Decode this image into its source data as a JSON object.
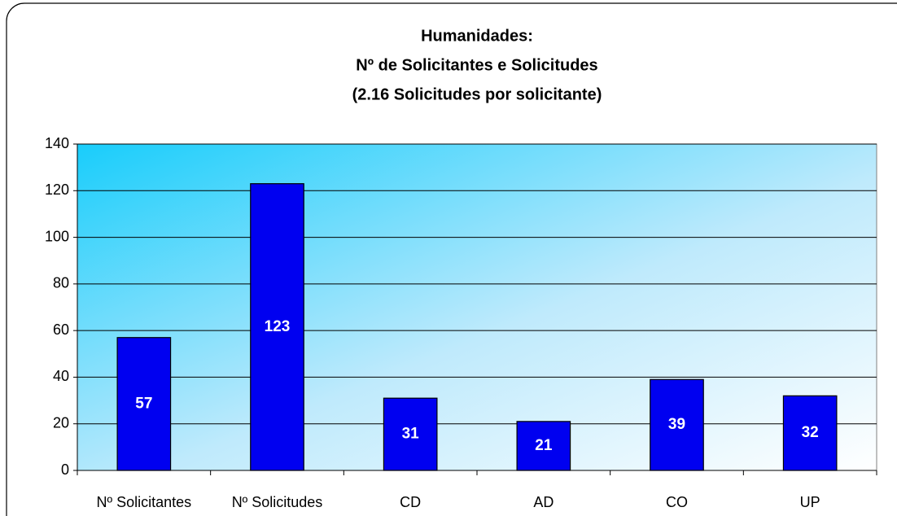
{
  "chart_data": {
    "type": "bar",
    "title": [
      "Humanidades:",
      "Nº de Solicitantes e Solicitudes",
      "(2.16 Solicitudes por solicitante)"
    ],
    "categories": [
      "Nº Solicitantes",
      "Nº Solicitudes",
      "CD",
      "AD",
      "CO",
      "UP"
    ],
    "values": [
      57,
      123,
      31,
      21,
      39,
      32
    ],
    "color": "#0000f0",
    "ylim": [
      0,
      140
    ],
    "yticks": [
      0,
      20,
      40,
      60,
      80,
      100,
      120,
      140
    ],
    "grid": true
  }
}
